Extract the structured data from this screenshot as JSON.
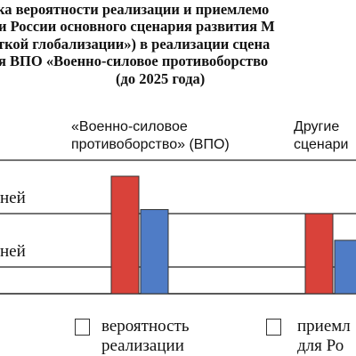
{
  "chart_data": {
    "type": "bar",
    "title_lines": [
      "ка вероятности реализации и приемлемо",
      "и России основного сценария развития М",
      "ткой глобализации») в реализации сцена",
      "я ВПО «Военно-силовое противоборство",
      "(до 2025 года)"
    ],
    "categories": [
      [
        "«Военно-силовое",
        "противоборство» (ВПО)"
      ],
      [
        "Другие",
        "сценари"
      ]
    ],
    "y_labels": [
      "ней",
      "ней"
    ],
    "series": [
      {
        "name": [
          "вероятность",
          "реализации"
        ],
        "values": [
          0.88,
          0.6
        ],
        "color": "#d9423a"
      },
      {
        "name": [
          "приемл",
          "для Ро"
        ],
        "values": [
          0.63,
          0.4
        ],
        "color": "#4f7cc6"
      }
    ],
    "ylim": [
      0,
      1
    ],
    "grid": true,
    "legend": "bottom"
  }
}
